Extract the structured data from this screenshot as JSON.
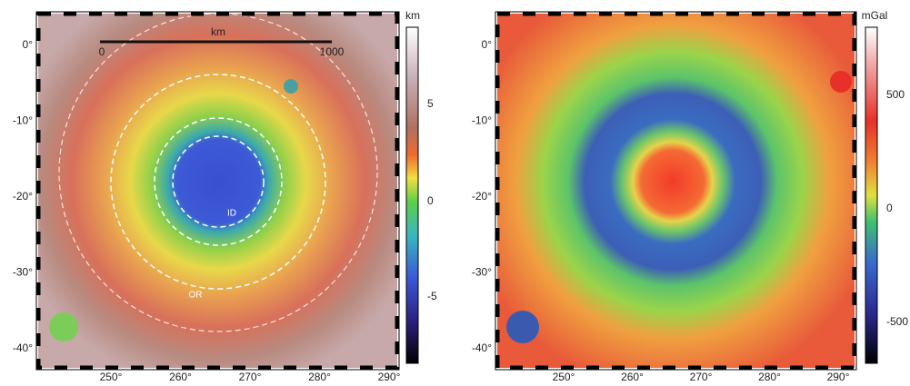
{
  "panels": [
    {
      "x_tick_labels": [
        "250°",
        "260°",
        "270°",
        "280°",
        "290°"
      ],
      "y_tick_labels": [
        "0°",
        "-10°",
        "-20°",
        "-30°",
        "-40°"
      ],
      "colorbar": {
        "title": "km",
        "labels": [
          "5",
          "0",
          "-5"
        ]
      },
      "scale_bar": {
        "title": "km",
        "labels": [
          "0",
          "1000"
        ]
      },
      "annotations": [
        "ID",
        "OR"
      ]
    },
    {
      "x_tick_labels": [
        "250°",
        "260°",
        "270°",
        "280°",
        "290°"
      ],
      "y_tick_labels": [
        "0°",
        "-10°",
        "-20°",
        "-30°",
        "-40°"
      ],
      "colorbar": {
        "title": "mGal",
        "labels": [
          "500",
          "0",
          "-500"
        ]
      }
    }
  ]
}
